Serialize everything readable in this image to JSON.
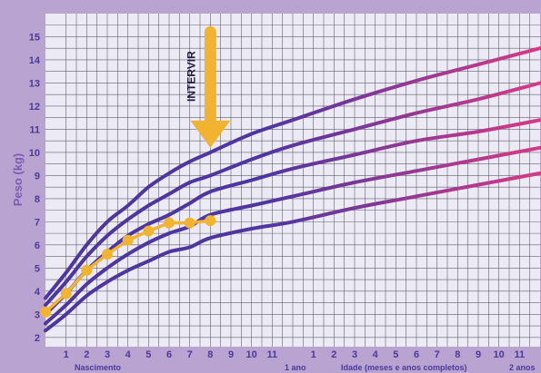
{
  "chart_data": {
    "type": "line",
    "ylabel": "Peso (kg)",
    "y_ticks": [
      "2",
      "3",
      "4",
      "5",
      "6",
      "7",
      "8",
      "9",
      "10",
      "11",
      "12",
      "13",
      "14",
      "15"
    ],
    "ylim": [
      1.6,
      16
    ],
    "x_ticks_first_year": [
      "1",
      "2",
      "3",
      "4",
      "5",
      "6",
      "7",
      "8",
      "9",
      "10",
      "11"
    ],
    "x_ticks_second_year": [
      "1",
      "2",
      "3",
      "4",
      "5",
      "6",
      "7",
      "8",
      "9",
      "10",
      "11"
    ],
    "xlim_months": [
      0,
      24
    ],
    "bottom_labels": {
      "birth": "Nascimento",
      "one_year": "1 ano",
      "axis_title": "Idade (meses e anos completos)",
      "two_years": "2 anos"
    },
    "grid": true,
    "annotation": {
      "text": "INTERVIR",
      "month": 8,
      "from_weight": 15.2,
      "to_weight": 10.2
    },
    "reference_curves": [
      {
        "months": [
          0,
          1,
          2,
          3,
          4,
          5,
          6,
          7,
          8,
          10,
          12,
          15,
          18,
          21,
          24
        ],
        "values": [
          2.3,
          3.0,
          3.8,
          4.4,
          4.9,
          5.3,
          5.7,
          5.9,
          6.3,
          6.7,
          7.0,
          7.6,
          8.1,
          8.6,
          9.1
        ]
      },
      {
        "months": [
          0,
          1,
          2,
          3,
          4,
          5,
          6,
          7,
          8,
          10,
          12,
          15,
          18,
          21,
          24
        ],
        "values": [
          2.6,
          3.4,
          4.3,
          5.0,
          5.6,
          6.1,
          6.5,
          6.8,
          7.3,
          7.7,
          8.1,
          8.7,
          9.2,
          9.7,
          10.2
        ]
      },
      {
        "months": [
          0,
          1,
          2,
          3,
          4,
          5,
          6,
          7,
          8,
          10,
          12,
          15,
          18,
          21,
          24
        ],
        "values": [
          3.0,
          3.9,
          4.9,
          5.7,
          6.4,
          6.9,
          7.3,
          7.8,
          8.3,
          8.8,
          9.3,
          9.9,
          10.5,
          10.9,
          11.4
        ]
      },
      {
        "months": [
          0,
          1,
          2,
          3,
          4,
          5,
          6,
          7,
          8,
          10,
          12,
          15,
          18,
          21,
          24
        ],
        "values": [
          3.4,
          4.4,
          5.5,
          6.4,
          7.1,
          7.7,
          8.2,
          8.7,
          9.0,
          9.7,
          10.3,
          11.0,
          11.7,
          12.3,
          13.0
        ]
      },
      {
        "months": [
          0,
          1,
          2,
          3,
          4,
          5,
          6,
          7,
          8,
          10,
          12,
          15,
          18,
          21,
          24
        ],
        "values": [
          3.7,
          4.8,
          6.0,
          7.0,
          7.7,
          8.5,
          9.1,
          9.6,
          10.0,
          10.8,
          11.4,
          12.3,
          13.1,
          13.8,
          14.5
        ]
      }
    ],
    "child_series": {
      "months": [
        0,
        1,
        2,
        3,
        4,
        5,
        6,
        7,
        8
      ],
      "values": [
        3.1,
        3.9,
        4.9,
        5.6,
        6.2,
        6.6,
        6.95,
        6.95,
        7.05
      ]
    },
    "colors": {
      "background": "#b9a3d0",
      "plot_area": "#eceaf4",
      "grid": "#4a4a5a",
      "curve_start": "#4e36a0",
      "curve_end": "#d63a86",
      "child_line": "#f2b430",
      "tick_text": "#4a3a9a",
      "axis_title": "#7b5cb5"
    }
  }
}
